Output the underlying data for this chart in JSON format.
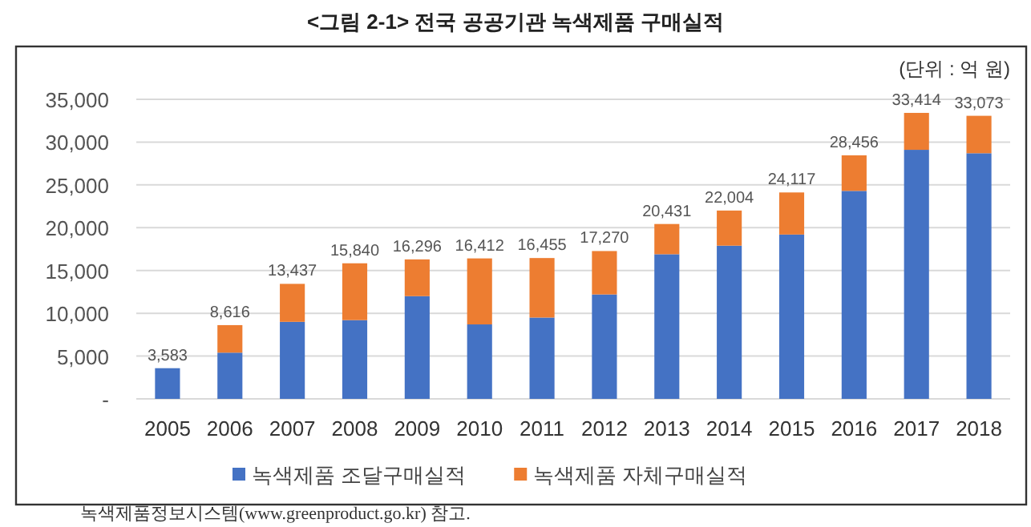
{
  "chart_data": {
    "type": "bar",
    "stacked": true,
    "title": "<그림 2-1> 전국 공공기관 녹색제품 구매실적",
    "categories": [
      "2005",
      "2006",
      "2007",
      "2008",
      "2009",
      "2010",
      "2011",
      "2012",
      "2013",
      "2014",
      "2015",
      "2016",
      "2017",
      "2018"
    ],
    "series": [
      {
        "name": "녹색제품 조달구매실적",
        "color": "#4472c4",
        "values": [
          3583,
          5400,
          9000,
          9200,
          12000,
          8700,
          9500,
          12200,
          16900,
          17900,
          19200,
          24300,
          29100,
          28700
        ]
      },
      {
        "name": "녹색제품 자체구매실적",
        "color": "#ed7d31",
        "values": [
          0,
          3216,
          4437,
          6640,
          4296,
          7712,
          6955,
          5070,
          3531,
          4104,
          4917,
          4156,
          4314,
          4373
        ]
      }
    ],
    "totals": [
      "3,583",
      "8,616",
      "13,437",
      "15,840",
      "16,296",
      "16,412",
      "16,455",
      "17,270",
      "20,431",
      "22,004",
      "24,117",
      "28,456",
      "33,414",
      "33,073"
    ],
    "ylim": [
      0,
      35000
    ],
    "yticks": [
      {
        "value": 0,
        "label": "-"
      },
      {
        "value": 5000,
        "label": "5,000"
      },
      {
        "value": 10000,
        "label": "10,000"
      },
      {
        "value": 15000,
        "label": "15,000"
      },
      {
        "value": 20000,
        "label": "20,000"
      },
      {
        "value": 25000,
        "label": "25,000"
      },
      {
        "value": 30000,
        "label": "30,000"
      },
      {
        "value": 35000,
        "label": "35,000"
      }
    ],
    "grid": "y",
    "legend": "bottom",
    "annotations": [
      "(단위 : 억 원)",
      "녹색제품정보시스템(www.greenproduct.go.kr) 참고."
    ]
  }
}
